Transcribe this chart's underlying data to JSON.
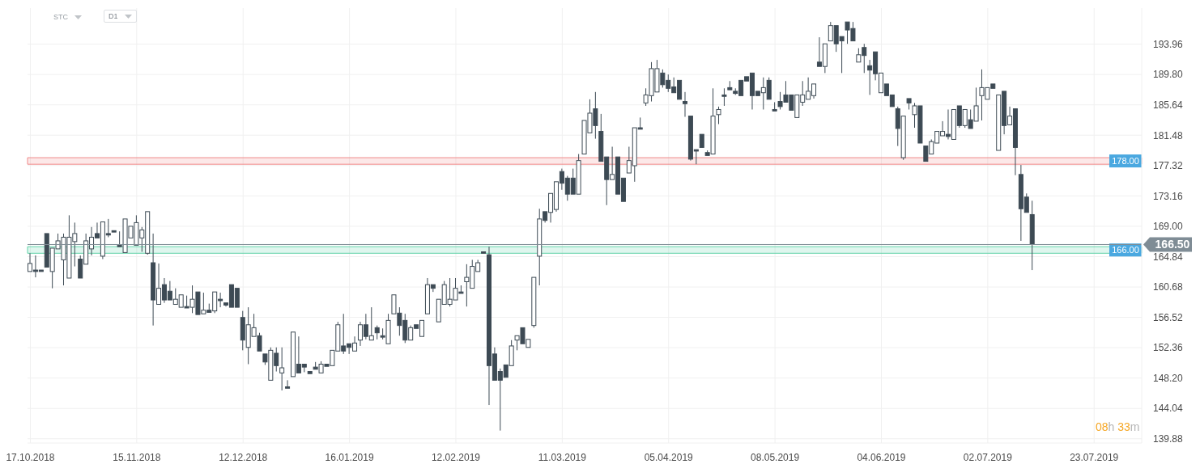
{
  "chart_data": {
    "type": "candlestick",
    "categories": [
      "17.10.2018",
      null,
      null,
      null,
      null,
      null,
      null,
      null,
      null,
      null,
      null,
      null,
      null,
      null,
      null,
      null,
      null,
      null,
      null,
      "15.11.2018",
      null,
      null,
      null,
      null,
      null,
      null,
      null,
      null,
      null,
      null,
      null,
      null,
      null,
      null,
      null,
      null,
      null,
      null,
      "12.12.2018",
      null,
      null,
      null,
      null,
      null,
      null,
      null,
      null,
      null,
      null,
      null,
      null,
      null,
      null,
      null,
      null,
      null,
      null,
      "16.01.2019",
      null,
      null,
      null,
      null,
      null,
      null,
      null,
      null,
      null,
      null,
      null,
      null,
      null,
      null,
      null,
      null,
      null,
      null,
      "12.02.2019",
      null,
      null,
      null,
      null,
      null,
      null,
      null,
      null,
      null,
      null,
      null,
      null,
      null,
      null,
      null,
      null,
      null,
      null,
      "11.03.2019",
      null,
      null,
      null,
      null,
      null,
      null,
      null,
      null,
      null,
      null,
      null,
      null,
      null,
      null,
      null,
      null,
      null,
      null,
      "05.04.2019",
      null,
      null,
      null,
      null,
      null,
      null,
      null,
      null,
      null,
      null,
      null,
      null,
      null,
      null,
      null,
      null,
      null,
      null,
      "08.05.2019",
      null,
      null,
      null,
      null,
      null,
      null,
      null,
      null,
      null,
      null,
      null,
      null,
      null,
      null,
      null,
      null,
      null,
      null,
      "04.06.2019",
      null,
      null,
      null,
      null,
      null,
      null,
      null,
      null,
      null,
      null,
      null,
      null,
      null,
      null,
      null,
      null,
      null,
      null,
      "02.07.2019",
      null,
      null,
      null,
      null,
      null,
      null,
      null,
      null,
      null,
      null,
      null,
      null,
      null,
      null,
      null,
      null,
      null,
      null,
      "23.07.2019",
      null,
      null,
      null,
      null,
      null,
      null,
      null,
      null
    ],
    "ohlc": [
      [
        162.8,
        165.3,
        162.8,
        163.9
      ],
      [
        163.0,
        165.0,
        162.0,
        162.8
      ],
      [
        163.0,
        163.0,
        162.8,
        162.8
      ],
      [
        168.0,
        168.0,
        163.4,
        163.4
      ],
      [
        162.8,
        166.0,
        160.5,
        166.0
      ],
      [
        165.9,
        168.0,
        165.9,
        167.0
      ],
      [
        164.4,
        168.0,
        160.9,
        167.5
      ],
      [
        161.9,
        170.5,
        161.9,
        167.5
      ],
      [
        166.9,
        169.5,
        163.5,
        168.0
      ],
      [
        164.5,
        165.0,
        161.9,
        161.9
      ],
      [
        163.8,
        168.0,
        163.8,
        167.0
      ],
      [
        165.9,
        168.9,
        165.0,
        167.5
      ],
      [
        168.0,
        169.5,
        167.4,
        167.4
      ],
      [
        164.9,
        169.6,
        164.5,
        169.6
      ],
      [
        168.0,
        170.0,
        167.5,
        167.8
      ],
      [
        168.4,
        168.4,
        168.2,
        168.2
      ],
      [
        166.4,
        168.3,
        166.2,
        166.2
      ],
      [
        165.4,
        170.0,
        165.4,
        170.0
      ],
      [
        167.4,
        169.0,
        167.4,
        169.0
      ],
      [
        166.4,
        170.5,
        166.4,
        169.5
      ],
      [
        167.4,
        168.9,
        165.5,
        168.5
      ],
      [
        165.3,
        171.0,
        165.1,
        171.0
      ],
      [
        164.0,
        168.0,
        155.4,
        158.9
      ],
      [
        158.3,
        163.9,
        158.3,
        160.5
      ],
      [
        161.0,
        161.9,
        158.5,
        158.9
      ],
      [
        160.1,
        161.5,
        158.9,
        158.9
      ],
      [
        158.3,
        160.5,
        158.3,
        159.0
      ],
      [
        157.9,
        159.6,
        157.9,
        159.6
      ],
      [
        158.0,
        159.5,
        157.8,
        157.8
      ],
      [
        157.9,
        160.9,
        157.1,
        159.0
      ],
      [
        160.0,
        160.0,
        156.9,
        156.9
      ],
      [
        157.0,
        159.9,
        157.0,
        157.5
      ],
      [
        157.5,
        158.4,
        157.2,
        157.2
      ],
      [
        157.4,
        160.0,
        157.1,
        160.0
      ],
      [
        159.0,
        159.9,
        157.9,
        158.8
      ],
      [
        158.5,
        158.5,
        158.0,
        158.2
      ],
      [
        161.0,
        161.0,
        157.9,
        157.9
      ],
      [
        160.5,
        160.5,
        157.9,
        157.9
      ],
      [
        156.5,
        157.4,
        152.0,
        153.4
      ],
      [
        152.4,
        157.9,
        150.1,
        155.5
      ],
      [
        153.9,
        157.0,
        153.9,
        155.1
      ],
      [
        154.0,
        154.4,
        151.9,
        151.9
      ],
      [
        151.5,
        151.5,
        150.0,
        150.4
      ],
      [
        147.9,
        152.4,
        147.9,
        152.0
      ],
      [
        151.6,
        152.4,
        149.1,
        149.9
      ],
      [
        148.9,
        152.4,
        146.5,
        149.6
      ],
      [
        147.0,
        147.9,
        146.8,
        146.8
      ],
      [
        148.4,
        154.5,
        148.4,
        154.5
      ],
      [
        150.1,
        153.9,
        148.9,
        148.9
      ],
      [
        150.1,
        150.1,
        149.0,
        149.7
      ],
      [
        149.1,
        149.1,
        148.8,
        148.8
      ],
      [
        149.7,
        150.4,
        149.4,
        149.4
      ],
      [
        148.9,
        150.5,
        148.9,
        150.1
      ],
      [
        150.1,
        150.1,
        149.8,
        149.8
      ],
      [
        149.9,
        152.0,
        149.9,
        152.0
      ],
      [
        151.9,
        155.9,
        151.9,
        155.5
      ],
      [
        152.6,
        157.0,
        151.5,
        151.9
      ],
      [
        152.9,
        152.9,
        151.5,
        152.4
      ],
      [
        151.9,
        153.9,
        151.9,
        153.0
      ],
      [
        153.4,
        155.9,
        152.6,
        155.5
      ],
      [
        155.5,
        157.0,
        153.5,
        153.9
      ],
      [
        153.4,
        157.9,
        153.4,
        154.0
      ],
      [
        155.1,
        155.4,
        153.5,
        154.4
      ],
      [
        154.0,
        155.0,
        153.5,
        153.8
      ],
      [
        152.9,
        157.0,
        152.9,
        156.1
      ],
      [
        157.0,
        159.6,
        157.0,
        159.6
      ],
      [
        157.1,
        157.9,
        154.0,
        155.4
      ],
      [
        156.1,
        157.0,
        153.0,
        153.4
      ],
      [
        153.4,
        155.4,
        153.4,
        155.1
      ],
      [
        155.5,
        155.5,
        155.0,
        155.0
      ],
      [
        153.9,
        156.1,
        153.9,
        156.1
      ],
      [
        157.0,
        161.9,
        157.0,
        161.0
      ],
      [
        161.0,
        161.0,
        160.0,
        160.5
      ],
      [
        155.9,
        159.0,
        155.9,
        159.0
      ],
      [
        158.3,
        161.5,
        158.3,
        161.0
      ],
      [
        158.3,
        161.9,
        158.0,
        159.0
      ],
      [
        158.9,
        161.9,
        158.9,
        160.5
      ],
      [
        160.0,
        160.9,
        159.8,
        159.8
      ],
      [
        161.4,
        163.8,
        158.0,
        162.0
      ],
      [
        160.5,
        164.4,
        160.5,
        163.5
      ],
      [
        162.8,
        164.4,
        162.8,
        164.0
      ],
      [
        165.5,
        165.5,
        165.3,
        165.3
      ],
      [
        165.1,
        166.2,
        144.5,
        149.9
      ],
      [
        151.5,
        152.4,
        147.9,
        147.9
      ],
      [
        149.1,
        149.5,
        141.0,
        147.9
      ],
      [
        150.0,
        150.0,
        148.3,
        148.3
      ],
      [
        149.9,
        153.4,
        149.9,
        152.6
      ],
      [
        153.4,
        154.0,
        152.0,
        154.0
      ],
      [
        155.1,
        155.1,
        152.9,
        152.9
      ],
      [
        152.4,
        153.5,
        152.4,
        153.5
      ],
      [
        155.4,
        162.0,
        155.1,
        162.0
      ],
      [
        164.9,
        171.4,
        160.9,
        170.0
      ],
      [
        171.0,
        171.0,
        169.5,
        169.8
      ],
      [
        170.9,
        173.5,
        169.5,
        173.5
      ],
      [
        171.3,
        175.1,
        171.0,
        175.1
      ],
      [
        176.5,
        176.9,
        174.0,
        174.9
      ],
      [
        175.6,
        175.9,
        172.5,
        173.4
      ],
      [
        175.6,
        176.9,
        173.4,
        173.4
      ],
      [
        173.4,
        178.9,
        173.4,
        178.0
      ],
      [
        178.9,
        183.5,
        178.9,
        183.5
      ],
      [
        181.8,
        186.4,
        181.8,
        184.5
      ],
      [
        185.1,
        187.4,
        181.0,
        182.8
      ],
      [
        182.0,
        184.4,
        177.9,
        177.9
      ],
      [
        178.5,
        178.5,
        171.9,
        175.4
      ],
      [
        175.4,
        179.9,
        175.4,
        176.1
      ],
      [
        178.5,
        178.5,
        173.4,
        173.4
      ],
      [
        175.6,
        175.6,
        172.4,
        172.4
      ],
      [
        176.3,
        179.9,
        176.3,
        178.0
      ],
      [
        177.3,
        182.5,
        175.1,
        182.5
      ],
      [
        182.5,
        183.9,
        182.3,
        182.3
      ],
      [
        185.9,
        187.9,
        185.5,
        187.0
      ],
      [
        186.9,
        191.5,
        186.1,
        190.6
      ],
      [
        187.4,
        191.8,
        187.4,
        190.6
      ],
      [
        190.0,
        190.5,
        188.0,
        188.4
      ],
      [
        189.0,
        189.8,
        187.4,
        187.9
      ],
      [
        188.1,
        189.4,
        187.3,
        187.3
      ],
      [
        189.0,
        189.0,
        186.4,
        186.4
      ],
      [
        186.1,
        187.4,
        184.0,
        185.8
      ],
      [
        184.1,
        184.1,
        178.0,
        178.2
      ],
      [
        179.5,
        179.5,
        177.5,
        179.3
      ],
      [
        181.6,
        181.6,
        179.8,
        179.8
      ],
      [
        179.1,
        179.4,
        178.7,
        178.7
      ],
      [
        178.9,
        187.9,
        178.9,
        184.1
      ],
      [
        184.3,
        185.4,
        183.0,
        185.0
      ],
      [
        187.0,
        187.9,
        185.5,
        186.8
      ],
      [
        188.0,
        188.9,
        187.7,
        187.7
      ],
      [
        187.5,
        187.9,
        187.0,
        187.2
      ],
      [
        189.0,
        189.0,
        186.9,
        186.9
      ],
      [
        189.5,
        189.5,
        188.9,
        188.9
      ],
      [
        190.0,
        190.0,
        185.0,
        186.9
      ],
      [
        187.5,
        187.5,
        186.9,
        186.9
      ],
      [
        187.3,
        189.4,
        185.0,
        188.0
      ],
      [
        189.0,
        189.4,
        186.4,
        186.4
      ],
      [
        185.0,
        186.0,
        184.8,
        184.8
      ],
      [
        186.1,
        187.4,
        185.0,
        185.4
      ],
      [
        187.0,
        188.9,
        186.0,
        186.0
      ],
      [
        187.0,
        187.0,
        184.9,
        184.9
      ],
      [
        183.9,
        187.0,
        183.9,
        187.0
      ],
      [
        186.0,
        188.9,
        185.5,
        187.0
      ],
      [
        186.4,
        189.4,
        186.4,
        187.5
      ],
      [
        186.9,
        188.5,
        186.5,
        188.5
      ],
      [
        191.5,
        194.9,
        190.9,
        190.9
      ],
      [
        190.9,
        194.0,
        190.0,
        194.0
      ],
      [
        194.4,
        197.0,
        194.4,
        196.5
      ],
      [
        196.5,
        196.5,
        192.9,
        194.0
      ],
      [
        195.0,
        195.0,
        190.0,
        194.4
      ],
      [
        197.0,
        197.0,
        194.0,
        195.9
      ],
      [
        196.1,
        197.0,
        194.4,
        194.4
      ],
      [
        191.5,
        193.4,
        191.5,
        192.5
      ],
      [
        193.5,
        194.0,
        190.0,
        192.4
      ],
      [
        191.0,
        191.8,
        187.0,
        190.4
      ],
      [
        192.9,
        192.9,
        189.0,
        189.9
      ],
      [
        187.3,
        190.0,
        187.3,
        190.0
      ],
      [
        188.5,
        188.5,
        186.9,
        186.9
      ],
      [
        187.0,
        187.0,
        185.4,
        185.4
      ],
      [
        185.1,
        185.4,
        180.0,
        182.4
      ],
      [
        178.4,
        184.1,
        178.1,
        184.1
      ],
      [
        186.5,
        186.5,
        185.0,
        185.9
      ],
      [
        184.3,
        185.9,
        182.5,
        185.5
      ],
      [
        185.5,
        185.5,
        180.4,
        180.4
      ],
      [
        180.0,
        180.0,
        177.9,
        177.9
      ],
      [
        178.9,
        180.9,
        178.9,
        180.6
      ],
      [
        180.4,
        182.0,
        180.4,
        182.0
      ],
      [
        181.4,
        183.4,
        181.4,
        182.0
      ],
      [
        181.6,
        185.0,
        180.9,
        181.3
      ],
      [
        180.9,
        185.0,
        180.9,
        185.0
      ],
      [
        185.5,
        185.5,
        182.5,
        182.8
      ],
      [
        182.8,
        185.0,
        182.5,
        185.0
      ],
      [
        183.6,
        185.0,
        182.4,
        182.4
      ],
      [
        183.4,
        188.0,
        183.4,
        185.5
      ],
      [
        186.9,
        190.5,
        183.5,
        188.0
      ],
      [
        186.4,
        188.0,
        186.4,
        188.0
      ],
      [
        188.5,
        188.5,
        187.9,
        187.9
      ],
      [
        179.4,
        187.0,
        179.4,
        187.0
      ],
      [
        187.5,
        187.5,
        181.6,
        182.8
      ],
      [
        182.9,
        185.4,
        182.9,
        184.1
      ],
      [
        185.1,
        185.1,
        176.0,
        179.8
      ],
      [
        176.1,
        177.4,
        167.0,
        171.4
      ],
      [
        173.0,
        173.5,
        170.9,
        170.9
      ],
      [
        170.6,
        172.5,
        163.0,
        166.5
      ],
      null,
      null,
      null,
      null,
      null,
      null,
      null,
      null,
      null,
      null,
      null,
      null,
      null,
      null,
      null,
      null,
      null,
      null,
      null
    ],
    "color": "#3d4a54",
    "ylim": [
      139.3,
      198.9
    ],
    "yticks": [
      139.88,
      144.04,
      {
        "value": 148.2,
        "label": "148.20"
      },
      152.36,
      156.52,
      160.68,
      164.84,
      {
        "value": 169,
        "label": "169.00"
      },
      173.16,
      177.32,
      181.48,
      185.64,
      {
        "value": 189.8,
        "label": "189.80"
      },
      193.96
    ],
    "grid": true,
    "bands": [
      {
        "axis": "y",
        "from": 177.5,
        "to": 178.4,
        "label": "178.00",
        "color": "#f08a8a"
      },
      {
        "axis": "y",
        "from": 165.3,
        "to": 166.2,
        "label": "166.00",
        "color": "#5fd3a8"
      }
    ],
    "ref_lines": [
      {
        "axis": "y",
        "value": 166.5,
        "label": "166.50",
        "color": "#7f8c95"
      }
    ],
    "annotations": [
      "STC",
      "D1",
      "08h 33m"
    ]
  }
}
